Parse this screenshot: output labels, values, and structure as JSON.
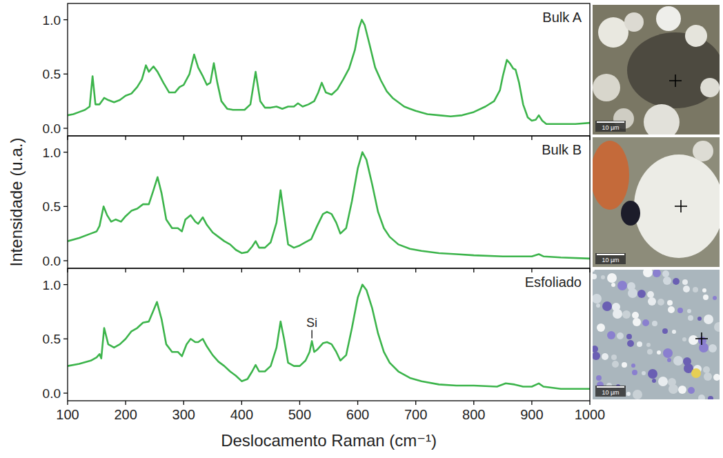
{
  "chart_data": [
    {
      "type": "line",
      "title": "Bulk A",
      "color": "#3cb44b",
      "tick_labels": "y",
      "xlim": [
        100,
        1000
      ],
      "xticks": [
        100,
        200,
        300,
        400,
        500,
        600,
        700,
        800,
        900,
        1000
      ],
      "ylim": [
        -0.07,
        1.15
      ],
      "yticks": [
        {
          "value": 0,
          "label": "0.0"
        },
        {
          "value": 0.5,
          "label": "0.5"
        },
        {
          "value": 1,
          "label": "1.0"
        }
      ],
      "x": [
        100,
        110,
        120,
        130,
        138,
        143,
        148,
        155,
        163,
        170,
        180,
        190,
        200,
        210,
        220,
        228,
        235,
        240,
        248,
        255,
        265,
        275,
        285,
        293,
        300,
        310,
        318,
        325,
        333,
        340,
        346,
        352,
        358,
        365,
        375,
        385,
        395,
        405,
        415,
        424,
        432,
        440,
        450,
        460,
        470,
        480,
        490,
        497,
        505,
        515,
        525,
        532,
        538,
        545,
        555,
        565,
        575,
        585,
        595,
        602,
        607,
        612,
        620,
        630,
        640,
        650,
        660,
        670,
        680,
        690,
        700,
        720,
        740,
        760,
        780,
        800,
        820,
        835,
        845,
        850,
        857,
        862,
        868,
        872,
        878,
        885,
        893,
        900,
        907,
        912,
        918,
        925,
        950,
        975,
        1000
      ],
      "values": [
        0.12,
        0.13,
        0.15,
        0.17,
        0.2,
        0.48,
        0.22,
        0.22,
        0.28,
        0.26,
        0.24,
        0.26,
        0.3,
        0.32,
        0.38,
        0.45,
        0.58,
        0.52,
        0.57,
        0.52,
        0.42,
        0.33,
        0.33,
        0.38,
        0.4,
        0.5,
        0.68,
        0.56,
        0.48,
        0.4,
        0.42,
        0.6,
        0.42,
        0.25,
        0.18,
        0.17,
        0.17,
        0.17,
        0.22,
        0.52,
        0.25,
        0.19,
        0.19,
        0.2,
        0.18,
        0.2,
        0.2,
        0.23,
        0.2,
        0.22,
        0.25,
        0.33,
        0.42,
        0.33,
        0.31,
        0.36,
        0.45,
        0.55,
        0.72,
        0.92,
        1.0,
        0.95,
        0.78,
        0.56,
        0.44,
        0.34,
        0.28,
        0.24,
        0.2,
        0.18,
        0.16,
        0.13,
        0.12,
        0.11,
        0.12,
        0.15,
        0.2,
        0.25,
        0.35,
        0.48,
        0.63,
        0.6,
        0.55,
        0.54,
        0.42,
        0.22,
        0.1,
        0.07,
        0.08,
        0.12,
        0.07,
        0.04,
        0.04,
        0.04,
        0.05
      ],
      "image_scale_label": "10 µm"
    },
    {
      "type": "line",
      "title": "Bulk B",
      "color": "#3cb44b",
      "tick_labels": "y",
      "y_label": "Intensidade (u.a.)",
      "xlim": [
        100,
        1000
      ],
      "xticks": [
        100,
        200,
        300,
        400,
        500,
        600,
        700,
        800,
        900,
        1000
      ],
      "ylim": [
        -0.07,
        1.15
      ],
      "yticks": [
        {
          "value": 0,
          "label": "0.0"
        },
        {
          "value": 0.5,
          "label": "0.5"
        },
        {
          "value": 1,
          "label": "1.0"
        }
      ],
      "x": [
        100,
        120,
        140,
        150,
        155,
        162,
        168,
        175,
        183,
        192,
        200,
        210,
        220,
        230,
        240,
        248,
        255,
        262,
        270,
        280,
        290,
        297,
        303,
        312,
        320,
        325,
        333,
        340,
        350,
        360,
        370,
        380,
        390,
        400,
        410,
        418,
        424,
        430,
        440,
        450,
        460,
        467,
        473,
        480,
        490,
        500,
        510,
        520,
        530,
        540,
        547,
        555,
        563,
        570,
        580,
        590,
        600,
        608,
        615,
        625,
        635,
        645,
        655,
        670,
        690,
        710,
        740,
        770,
        800,
        850,
        900,
        912,
        920,
        950,
        1000
      ],
      "values": [
        0.18,
        0.21,
        0.25,
        0.27,
        0.32,
        0.5,
        0.42,
        0.36,
        0.38,
        0.36,
        0.41,
        0.46,
        0.48,
        0.52,
        0.52,
        0.65,
        0.77,
        0.62,
        0.38,
        0.3,
        0.3,
        0.27,
        0.38,
        0.42,
        0.36,
        0.34,
        0.4,
        0.33,
        0.26,
        0.22,
        0.18,
        0.15,
        0.1,
        0.07,
        0.08,
        0.13,
        0.18,
        0.12,
        0.12,
        0.17,
        0.35,
        0.65,
        0.42,
        0.15,
        0.12,
        0.14,
        0.17,
        0.2,
        0.32,
        0.43,
        0.45,
        0.43,
        0.35,
        0.25,
        0.3,
        0.55,
        0.85,
        1.0,
        0.93,
        0.7,
        0.45,
        0.3,
        0.22,
        0.15,
        0.11,
        0.09,
        0.07,
        0.06,
        0.05,
        0.04,
        0.04,
        0.06,
        0.04,
        0.03,
        0.02
      ],
      "image_scale_label": "10 µm"
    },
    {
      "type": "line",
      "title": "Esfoliado",
      "color": "#3cb44b",
      "x_label": "Deslocamento Raman (cm⁻¹)",
      "xlim": [
        100,
        1000
      ],
      "xticks": [
        100,
        200,
        300,
        400,
        500,
        600,
        700,
        800,
        900,
        1000
      ],
      "ylim": [
        -0.07,
        1.15
      ],
      "yticks": [
        {
          "value": 0,
          "label": "0.0"
        },
        {
          "value": 0.5,
          "label": "0.5"
        },
        {
          "value": 1,
          "label": "1.0"
        }
      ],
      "x": [
        100,
        120,
        140,
        150,
        155,
        158,
        163,
        170,
        180,
        190,
        200,
        210,
        220,
        230,
        240,
        247,
        254,
        262,
        270,
        280,
        290,
        297,
        305,
        312,
        320,
        325,
        333,
        340,
        350,
        360,
        370,
        380,
        390,
        400,
        410,
        418,
        424,
        430,
        440,
        450,
        460,
        467,
        473,
        480,
        490,
        500,
        510,
        517,
        521,
        525,
        530,
        540,
        547,
        555,
        563,
        570,
        580,
        590,
        600,
        608,
        615,
        625,
        635,
        645,
        655,
        670,
        690,
        710,
        740,
        770,
        800,
        840,
        855,
        870,
        885,
        900,
        912,
        920,
        950,
        1000
      ],
      "values": [
        0.25,
        0.27,
        0.3,
        0.33,
        0.36,
        0.32,
        0.6,
        0.45,
        0.42,
        0.45,
        0.5,
        0.57,
        0.6,
        0.65,
        0.66,
        0.75,
        0.84,
        0.68,
        0.45,
        0.38,
        0.38,
        0.34,
        0.45,
        0.5,
        0.47,
        0.47,
        0.5,
        0.43,
        0.35,
        0.29,
        0.25,
        0.2,
        0.16,
        0.11,
        0.13,
        0.2,
        0.26,
        0.2,
        0.2,
        0.25,
        0.42,
        0.66,
        0.5,
        0.28,
        0.25,
        0.25,
        0.3,
        0.38,
        0.48,
        0.38,
        0.4,
        0.46,
        0.47,
        0.45,
        0.38,
        0.3,
        0.35,
        0.6,
        0.88,
        1.0,
        0.95,
        0.78,
        0.55,
        0.38,
        0.28,
        0.2,
        0.14,
        0.11,
        0.08,
        0.07,
        0.07,
        0.06,
        0.09,
        0.08,
        0.06,
        0.06,
        0.09,
        0.06,
        0.04,
        0.04
      ],
      "annotations": [
        {
          "text": "Si",
          "x": 521,
          "y": 0.48
        }
      ],
      "image_scale_label": "10 µm"
    }
  ]
}
